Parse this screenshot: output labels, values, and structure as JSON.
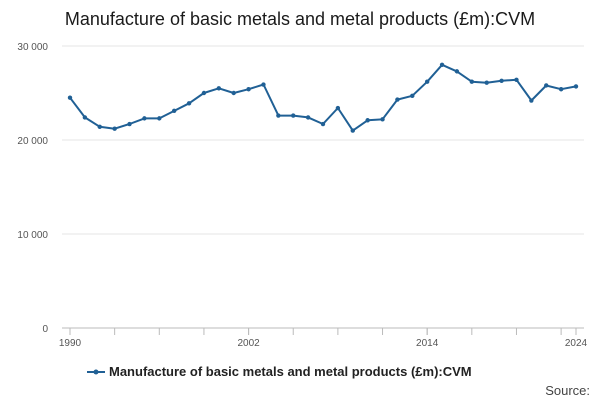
{
  "title": "Manufacture of basic metals and metal products (£m):CVM",
  "source_label": "Source:",
  "colors": {
    "series": "#206095",
    "grid": "#e6e6e6",
    "axis": "#bbbbbb",
    "tick_text": "#555555"
  },
  "chart_data": {
    "type": "line",
    "title": "Manufacture of basic metals and metal products (£m):CVM",
    "xlabel": "",
    "ylabel": "",
    "xlim": [
      1990,
      2024
    ],
    "ylim": [
      0,
      30000
    ],
    "grid": true,
    "legend_position": "bottom",
    "y_ticks": [
      0,
      10000,
      20000,
      30000
    ],
    "y_tick_labels": [
      "0",
      "10 000",
      "20 000",
      "30 000"
    ],
    "x_tick_labels": [
      "1990",
      "2002",
      "2014",
      "2024"
    ],
    "x_tick_values": [
      1990,
      2002,
      2014,
      2024
    ],
    "x_minor_ticks": [
      1990,
      1993,
      1996,
      1999,
      2002,
      2005,
      2008,
      2011,
      2014,
      2017,
      2020,
      2023
    ],
    "series": [
      {
        "name": "Manufacture of basic metals and metal products (£m):CVM",
        "x": [
          1990,
          1991,
          1992,
          1993,
          1994,
          1995,
          1996,
          1997,
          1998,
          1999,
          2000,
          2001,
          2002,
          2003,
          2004,
          2005,
          2006,
          2007,
          2008,
          2009,
          2010,
          2011,
          2012,
          2013,
          2014,
          2015,
          2016,
          2017,
          2018,
          2019,
          2020,
          2021,
          2022,
          2023,
          2024
        ],
        "values": [
          24500,
          22400,
          21400,
          21200,
          21700,
          22300,
          22300,
          23100,
          23900,
          25000,
          25500,
          25000,
          25400,
          25900,
          22600,
          22600,
          22400,
          21700,
          23400,
          21000,
          22100,
          22200,
          24300,
          24700,
          26200,
          28000,
          27300,
          26200,
          26100,
          26300,
          26400,
          24200,
          25800,
          25400,
          25700
        ]
      }
    ]
  }
}
